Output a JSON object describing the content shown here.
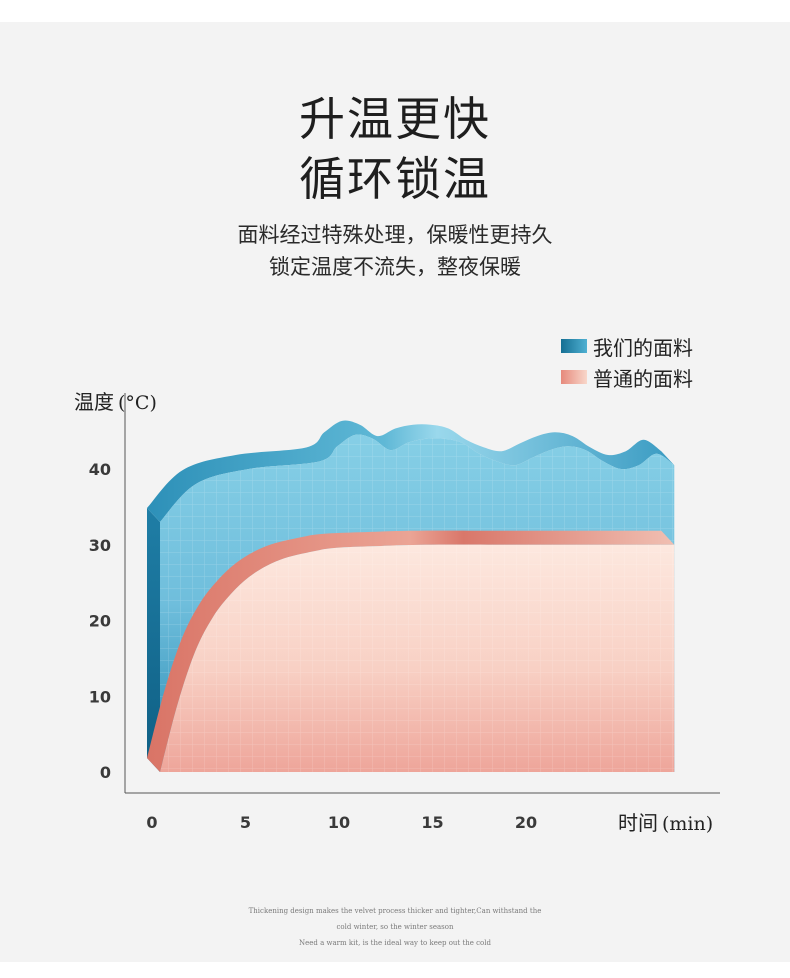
{
  "header": {
    "title_line1": "升温更快",
    "title_line2": "循环锁温",
    "subtitle_line1": "面料经过特殊处理，保暖性更持久",
    "subtitle_line2": "锁定温度不流失，整夜保暖"
  },
  "chart_data": {
    "type": "area",
    "ylabel": "温度",
    "ylabel_unit": "(°C)",
    "xlabel": "时间",
    "xlabel_unit": "(min)",
    "x_ticks": [
      "0",
      "5",
      "10",
      "15",
      "20"
    ],
    "y_ticks": [
      "0",
      "10",
      "20",
      "30",
      "40"
    ],
    "xlim": [
      0,
      30
    ],
    "ylim": [
      0,
      45
    ],
    "legend_position": "top-right",
    "series": [
      {
        "name": "我们的面料",
        "color": "#4fb0d2",
        "x": [
          0,
          2,
          5,
          9,
          10,
          11,
          12,
          13,
          14,
          15,
          16,
          17,
          18,
          19,
          20,
          21,
          22,
          23,
          24,
          25,
          26,
          27,
          28,
          29
        ],
        "y": [
          33,
          38,
          40,
          41,
          43,
          44.5,
          44,
          42.5,
          43.5,
          44,
          44,
          43.5,
          42,
          41,
          40.5,
          41.5,
          42.5,
          43,
          42.5,
          41,
          40,
          40.5,
          42,
          40.5
        ]
      },
      {
        "name": "普通的面料",
        "color": "#f4b4a8",
        "x": [
          0,
          1,
          2,
          3,
          4,
          5,
          6,
          7,
          8,
          9,
          10,
          12,
          15,
          20,
          25,
          29
        ],
        "y": [
          0,
          9,
          16,
          20.5,
          23.5,
          25.7,
          27.2,
          28.2,
          28.8,
          29.3,
          29.6,
          29.8,
          30,
          30,
          30,
          30
        ]
      }
    ]
  },
  "footer": {
    "line1": "Thickening design makes the velvet process thicker and tighter,Can withstand the",
    "line2": "cold winter, so the winter season",
    "line3": "Need a warm kit, is the ideal way to keep out the cold"
  }
}
